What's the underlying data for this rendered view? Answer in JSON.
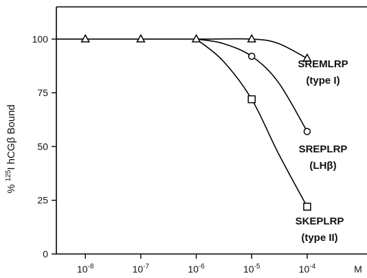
{
  "chart_data": {
    "type": "line",
    "ylabel": "% 125I hCGβ Bound",
    "ylabel_parts": {
      "pre": "% ",
      "sup": "125",
      "post": "I hCGβ Bound"
    },
    "x_unit": "M",
    "x_scale": "log",
    "xlim": [
      3e-09,
      0.0012
    ],
    "ylim": [
      0,
      115
    ],
    "x_ticks": [
      {
        "value": 1e-08,
        "base": "10",
        "exp": "-8"
      },
      {
        "value": 1e-07,
        "base": "10",
        "exp": "-7"
      },
      {
        "value": 1e-06,
        "base": "10",
        "exp": "-6"
      },
      {
        "value": 1e-05,
        "base": "10",
        "exp": "-5"
      },
      {
        "value": 0.0001,
        "base": "10",
        "exp": "-4"
      }
    ],
    "y_ticks": [
      0,
      25,
      50,
      75,
      100
    ],
    "grid": false,
    "series": [
      {
        "name": "SREMLRP (type I)",
        "label_lines": [
          "SREMLRP",
          "(type I)"
        ],
        "marker": "triangle",
        "x": [
          1e-08,
          1e-07,
          1e-06,
          1e-05,
          0.0001
        ],
        "y": [
          100,
          100,
          100,
          100,
          91
        ],
        "curve": [
          [
            3e-09,
            100
          ],
          [
            1e-06,
            100
          ],
          [
            1e-05,
            100
          ],
          [
            3e-05,
            98
          ],
          [
            0.0001,
            91
          ]
        ]
      },
      {
        "name": "SREPLRP (LHβ)",
        "label_lines": [
          "SREPLRP",
          "(LHβ)"
        ],
        "marker": "circle",
        "x": [
          1e-05,
          0.0001
        ],
        "y": [
          92,
          57
        ],
        "curve": [
          [
            1e-06,
            100
          ],
          [
            3e-06,
            98
          ],
          [
            1e-05,
            92
          ],
          [
            3e-05,
            80
          ],
          [
            0.0001,
            57
          ]
        ]
      },
      {
        "name": "SKEPLRP (type II)",
        "label_lines": [
          "SKEPLRP",
          "(type II)"
        ],
        "marker": "square",
        "x": [
          1e-05,
          0.0001
        ],
        "y": [
          72,
          22
        ],
        "curve": [
          [
            1e-06,
            100
          ],
          [
            3e-06,
            90
          ],
          [
            1e-05,
            72
          ],
          [
            3e-05,
            47
          ],
          [
            0.0001,
            22
          ]
        ]
      }
    ]
  }
}
